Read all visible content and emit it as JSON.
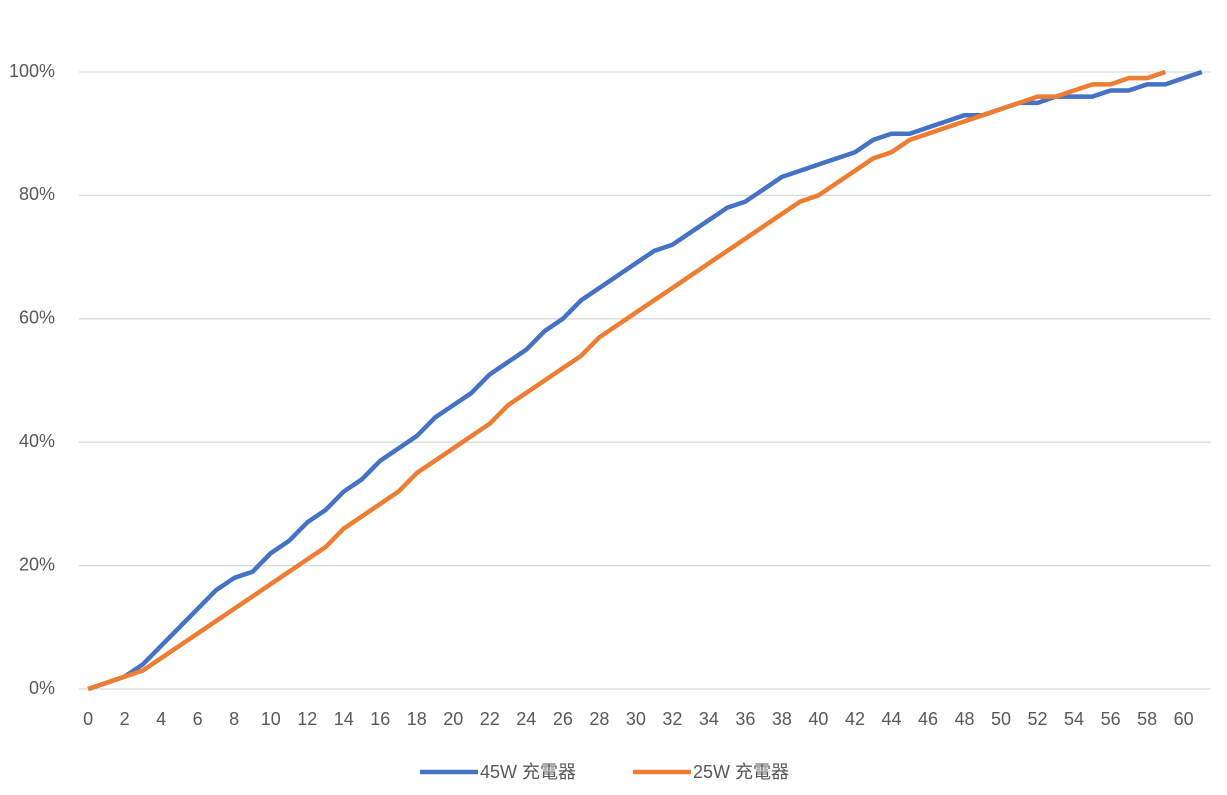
{
  "chart_data": {
    "type": "line",
    "x": [
      0,
      1,
      2,
      3,
      4,
      5,
      6,
      7,
      8,
      9,
      10,
      11,
      12,
      13,
      14,
      15,
      16,
      17,
      18,
      19,
      20,
      21,
      22,
      23,
      24,
      25,
      26,
      27,
      28,
      29,
      30,
      31,
      32,
      33,
      34,
      35,
      36,
      37,
      38,
      39,
      40,
      41,
      42,
      43,
      44,
      45,
      46,
      47,
      48,
      49,
      50,
      51,
      52,
      53,
      54,
      55,
      56,
      57,
      58,
      59,
      60,
      61
    ],
    "series": [
      {
        "name": "45W 充電器",
        "color": "#4472c4",
        "values": [
          0,
          1,
          2,
          4,
          7,
          10,
          13,
          16,
          18,
          19,
          22,
          24,
          27,
          29,
          32,
          34,
          37,
          39,
          41,
          44,
          46,
          48,
          51,
          53,
          55,
          58,
          60,
          63,
          65,
          67,
          69,
          71,
          72,
          74,
          76,
          78,
          79,
          81,
          83,
          84,
          85,
          86,
          87,
          89,
          90,
          90,
          91,
          92,
          93,
          93,
          94,
          95,
          95,
          96,
          96,
          96,
          97,
          97,
          98,
          98,
          99,
          100
        ]
      },
      {
        "name": "25W 充電器",
        "color": "#ed7d31",
        "values": [
          0,
          1,
          2,
          3,
          5,
          7,
          9,
          11,
          13,
          15,
          17,
          19,
          21,
          23,
          26,
          28,
          30,
          32,
          35,
          37,
          39,
          41,
          43,
          46,
          48,
          50,
          52,
          54,
          57,
          59,
          61,
          63,
          65,
          67,
          69,
          71,
          73,
          75,
          77,
          79,
          80,
          82,
          84,
          86,
          87,
          89,
          90,
          91,
          92,
          93,
          94,
          95,
          96,
          96,
          97,
          98,
          98,
          99,
          99,
          100,
          null,
          null
        ]
      }
    ],
    "xlim": [
      -0.5,
      61.5
    ],
    "xticks": [
      0,
      2,
      4,
      6,
      8,
      10,
      12,
      14,
      16,
      18,
      20,
      22,
      24,
      26,
      28,
      30,
      32,
      34,
      36,
      38,
      40,
      42,
      44,
      46,
      48,
      50,
      52,
      54,
      56,
      58,
      60
    ],
    "ylim": [
      0,
      100
    ],
    "yticks": [
      {
        "value": 0,
        "label": "0%"
      },
      {
        "value": 20,
        "label": "20%"
      },
      {
        "value": 40,
        "label": "40%"
      },
      {
        "value": 60,
        "label": "60%"
      },
      {
        "value": 80,
        "label": "80%"
      },
      {
        "value": 100,
        "label": "100%"
      }
    ],
    "grid": true,
    "legend": "bottom"
  }
}
